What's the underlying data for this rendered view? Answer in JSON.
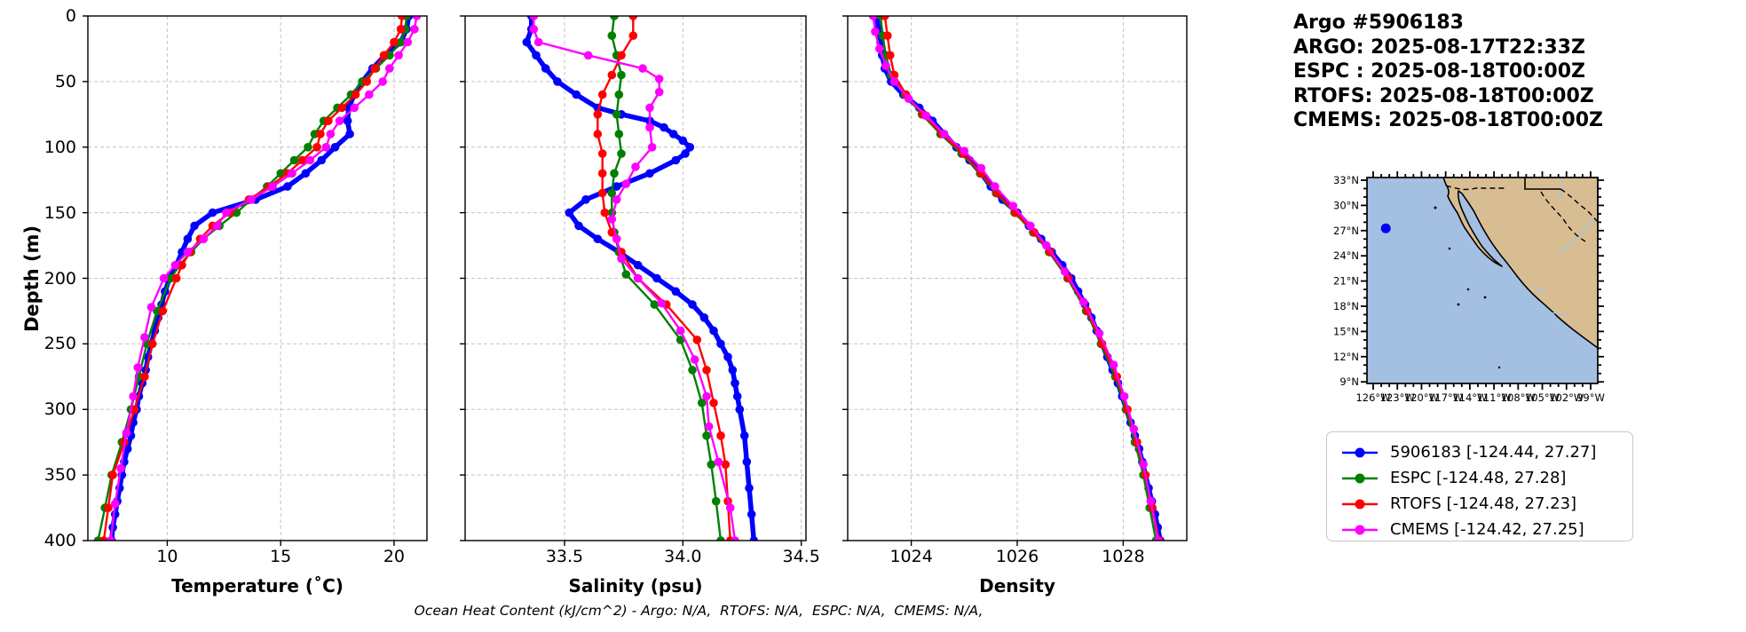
{
  "title_block": {
    "lines": [
      "Argo #5906183",
      "ARGO: 2025-08-17T22:33Z",
      "ESPC : 2025-08-18T00:00Z",
      "RTOFS: 2025-08-18T00:00Z",
      "CMEMS: 2025-08-18T00:00Z"
    ]
  },
  "ylabel": "Depth (m)",
  "footer": "Ocean Heat Content (kJ/cm^2) - Argo: N/A,  RTOFS: N/A,  ESPC: N/A,  CMEMS: N/A,",
  "colors": {
    "argo": "#0000ff",
    "espc": "#008000",
    "rtofs": "#ff0000",
    "cmems": "#ff00ff",
    "grid": "#c4c4c4",
    "ocean": "#a3bfe2",
    "land": "#d9bd92",
    "river": "#9cc4ec"
  },
  "legend": {
    "items": [
      {
        "label": "5906183 [-124.44, 27.27]",
        "color": "#0000ff"
      },
      {
        "label": "ESPC [-124.48, 27.28]",
        "color": "#008000"
      },
      {
        "label": "RTOFS [-124.48, 27.23]",
        "color": "#ff0000"
      },
      {
        "label": "CMEMS [-124.42, 27.25]",
        "color": "#ff00ff"
      }
    ]
  },
  "map": {
    "lat_labels": [
      "33°N",
      "30°N",
      "27°N",
      "24°N",
      "21°N",
      "18°N",
      "15°N",
      "12°N",
      "9°N"
    ],
    "lon_labels": [
      "126°W",
      "123°W",
      "120°W",
      "117°W",
      "114°W",
      "111°W",
      "108°W",
      "105°W",
      "102°W",
      "99°W"
    ],
    "float_lon": -124.44,
    "float_lat": 27.27,
    "marker_color": "#0000ff"
  },
  "chart_data": [
    {
      "type": "line",
      "xlabel": "Temperature (˚C)",
      "ylabel": "Depth (m)",
      "xlim": [
        6.5,
        21.45
      ],
      "ylim": [
        0,
        400
      ],
      "x_ticks": [
        10,
        15,
        20
      ],
      "x_tick_labels": [
        "10",
        "15",
        "20"
      ],
      "y_ticks": [
        0,
        50,
        100,
        150,
        200,
        250,
        300,
        350,
        400
      ],
      "y_tick_labels": [
        "0",
        "50",
        "100",
        "150",
        "200",
        "250",
        "300",
        "350",
        "400"
      ],
      "grid": true,
      "series": [
        {
          "name": "5906183",
          "color": "#0000ff",
          "depth": [
            0,
            10,
            20,
            30,
            40,
            50,
            60,
            70,
            80,
            90,
            100,
            110,
            120,
            130,
            140,
            150,
            160,
            170,
            180,
            190,
            200,
            210,
            220,
            230,
            240,
            250,
            260,
            270,
            280,
            290,
            300,
            310,
            320,
            330,
            340,
            350,
            360,
            370,
            380,
            390,
            400
          ],
          "values": [
            20.65,
            20.55,
            20.3,
            19.6,
            19.05,
            18.6,
            18.25,
            18.0,
            17.95,
            18.05,
            17.4,
            16.8,
            16.1,
            15.3,
            13.9,
            12.0,
            11.2,
            10.9,
            10.65,
            10.4,
            10.1,
            9.9,
            9.75,
            9.6,
            9.45,
            9.3,
            9.15,
            9.05,
            8.9,
            8.75,
            8.65,
            8.5,
            8.4,
            8.25,
            8.1,
            8.0,
            7.9,
            7.8,
            7.7,
            7.6,
            7.55
          ]
        },
        {
          "name": "ESPC",
          "color": "#008000",
          "depth": [
            0,
            10,
            20,
            30,
            40,
            50,
            60,
            70,
            80,
            90,
            100,
            110,
            120,
            130,
            140,
            150,
            160,
            170,
            180,
            190,
            200,
            225,
            250,
            275,
            300,
            325,
            350,
            375,
            400
          ],
          "values": [
            20.55,
            20.5,
            20.3,
            19.8,
            19.2,
            18.6,
            18.1,
            17.5,
            16.9,
            16.5,
            16.2,
            15.6,
            15.0,
            14.4,
            13.7,
            13.05,
            12.3,
            11.6,
            11.05,
            10.55,
            10.15,
            9.55,
            9.1,
            8.75,
            8.4,
            8.0,
            7.55,
            7.25,
            6.95
          ]
        },
        {
          "name": "RTOFS",
          "color": "#ff0000",
          "depth": [
            0,
            10,
            20,
            30,
            40,
            50,
            60,
            70,
            80,
            90,
            100,
            110,
            120,
            130,
            140,
            150,
            160,
            170,
            180,
            190,
            200,
            225,
            250,
            275,
            300,
            325,
            350,
            375,
            400
          ],
          "values": [
            20.35,
            20.3,
            20.0,
            19.55,
            19.15,
            18.8,
            18.3,
            17.7,
            17.1,
            16.75,
            16.6,
            15.95,
            15.3,
            14.5,
            13.6,
            12.75,
            12.0,
            11.45,
            11.0,
            10.65,
            10.4,
            9.8,
            9.35,
            9.0,
            8.55,
            8.1,
            7.6,
            7.4,
            7.2
          ]
        },
        {
          "name": "CMEMS",
          "color": "#ff00ff",
          "depth": [
            0,
            10,
            20,
            30,
            40,
            50,
            60,
            70,
            80,
            90,
            100,
            110,
            120,
            130,
            140,
            150,
            160,
            170,
            180,
            190,
            200,
            222,
            245,
            268,
            290,
            318,
            345,
            372,
            400
          ],
          "values": [
            21.0,
            20.9,
            20.6,
            20.2,
            19.8,
            19.5,
            18.9,
            18.25,
            17.6,
            17.2,
            17.0,
            16.3,
            15.5,
            14.65,
            13.7,
            12.6,
            12.2,
            11.6,
            10.9,
            10.35,
            9.85,
            9.3,
            9.0,
            8.7,
            8.5,
            8.2,
            7.95,
            7.7,
            7.5
          ]
        }
      ]
    },
    {
      "type": "line",
      "xlabel": "Salinity (psu)",
      "ylabel": "Depth (m)",
      "xlim": [
        33.08,
        34.52
      ],
      "ylim": [
        0,
        400
      ],
      "x_ticks": [
        33.5,
        34.0,
        34.5
      ],
      "x_tick_labels": [
        "33.5",
        "34.0",
        "34.5"
      ],
      "y_ticks": [
        0,
        50,
        100,
        150,
        200,
        250,
        300,
        350,
        400
      ],
      "y_tick_labels": [
        "0",
        "50",
        "100",
        "150",
        "200",
        "250",
        "300",
        "350",
        "400"
      ],
      "grid": true,
      "series": [
        {
          "name": "5906183",
          "color": "#0000ff",
          "depth": [
            0,
            10,
            20,
            30,
            40,
            50,
            60,
            70,
            75,
            80,
            85,
            90,
            95,
            100,
            105,
            110,
            120,
            130,
            140,
            150,
            160,
            170,
            180,
            190,
            200,
            210,
            220,
            230,
            240,
            250,
            260,
            270,
            280,
            290,
            300,
            320,
            340,
            360,
            380,
            400
          ],
          "values": [
            33.36,
            33.36,
            33.34,
            33.38,
            33.42,
            33.47,
            33.55,
            33.64,
            33.74,
            33.86,
            33.92,
            33.96,
            34.0,
            34.03,
            34.01,
            33.97,
            33.86,
            33.72,
            33.59,
            33.52,
            33.56,
            33.64,
            33.73,
            33.81,
            33.89,
            33.97,
            34.04,
            34.09,
            34.13,
            34.16,
            34.19,
            34.21,
            34.22,
            34.23,
            34.24,
            34.26,
            34.27,
            34.28,
            34.29,
            34.3
          ]
        },
        {
          "name": "ESPC",
          "color": "#008000",
          "depth": [
            0,
            15,
            30,
            45,
            60,
            75,
            90,
            105,
            120,
            135,
            150,
            165,
            180,
            197,
            220,
            247,
            270,
            295,
            320,
            342,
            370,
            400
          ],
          "values": [
            33.71,
            33.7,
            33.72,
            33.74,
            33.73,
            33.72,
            33.73,
            33.74,
            33.71,
            33.7,
            33.7,
            33.71,
            33.73,
            33.76,
            33.88,
            33.99,
            34.04,
            34.08,
            34.1,
            34.12,
            34.14,
            34.16
          ]
        },
        {
          "name": "RTOFS",
          "color": "#ff0000",
          "depth": [
            0,
            15,
            30,
            45,
            60,
            75,
            90,
            105,
            120,
            135,
            150,
            165,
            180,
            200,
            220,
            247,
            270,
            295,
            320,
            342,
            370,
            400
          ],
          "values": [
            33.79,
            33.79,
            33.74,
            33.7,
            33.66,
            33.64,
            33.64,
            33.66,
            33.66,
            33.66,
            33.67,
            33.7,
            33.74,
            33.81,
            33.93,
            34.06,
            34.1,
            34.13,
            34.16,
            34.18,
            34.19,
            34.2
          ]
        },
        {
          "name": "CMEMS",
          "color": "#ff00ff",
          "depth": [
            0,
            10,
            20,
            30,
            40,
            48,
            58,
            70,
            85,
            100,
            115,
            128,
            140,
            155,
            170,
            185,
            200,
            219,
            240,
            262,
            290,
            313,
            340,
            375,
            400
          ],
          "values": [
            33.37,
            33.37,
            33.39,
            33.6,
            33.83,
            33.9,
            33.9,
            33.86,
            33.86,
            33.87,
            33.8,
            33.76,
            33.72,
            33.7,
            33.72,
            33.74,
            33.81,
            33.91,
            33.99,
            34.05,
            34.1,
            34.11,
            34.15,
            34.2,
            34.22
          ]
        }
      ]
    },
    {
      "type": "line",
      "xlabel": "Density",
      "ylabel": "Depth (m)",
      "xlim": [
        1022.8,
        1029.2
      ],
      "ylim": [
        0,
        400
      ],
      "x_ticks": [
        1024,
        1026,
        1028
      ],
      "x_tick_labels": [
        "1024",
        "1026",
        "1028"
      ],
      "y_ticks": [
        0,
        50,
        100,
        150,
        200,
        250,
        300,
        350,
        400
      ],
      "y_tick_labels": [
        "0",
        "50",
        "100",
        "150",
        "200",
        "250",
        "300",
        "350",
        "400"
      ],
      "grid": true,
      "series": [
        {
          "name": "5906183",
          "color": "#0000ff",
          "depth": [
            0,
            10,
            20,
            30,
            40,
            50,
            60,
            70,
            80,
            90,
            100,
            110,
            120,
            130,
            140,
            150,
            160,
            170,
            180,
            190,
            200,
            210,
            220,
            230,
            240,
            250,
            260,
            270,
            280,
            290,
            300,
            310,
            320,
            330,
            340,
            350,
            360,
            370,
            380,
            390,
            400
          ],
          "values": [
            1023.35,
            1023.38,
            1023.42,
            1023.45,
            1023.5,
            1023.62,
            1023.85,
            1024.15,
            1024.4,
            1024.62,
            1024.85,
            1025.1,
            1025.32,
            1025.5,
            1025.72,
            1026.0,
            1026.22,
            1026.45,
            1026.65,
            1026.85,
            1027.02,
            1027.15,
            1027.28,
            1027.4,
            1027.5,
            1027.6,
            1027.7,
            1027.8,
            1027.9,
            1027.98,
            1028.06,
            1028.14,
            1028.22,
            1028.3,
            1028.36,
            1028.42,
            1028.48,
            1028.54,
            1028.6,
            1028.65,
            1028.7
          ]
        },
        {
          "name": "ESPC",
          "color": "#008000",
          "depth": [
            0,
            15,
            30,
            45,
            60,
            75,
            90,
            105,
            120,
            135,
            150,
            165,
            180,
            200,
            225,
            250,
            275,
            300,
            325,
            350,
            375,
            400
          ],
          "values": [
            1023.42,
            1023.46,
            1023.52,
            1023.62,
            1023.88,
            1024.2,
            1024.55,
            1024.95,
            1025.3,
            1025.6,
            1025.95,
            1026.3,
            1026.6,
            1026.95,
            1027.3,
            1027.58,
            1027.85,
            1028.05,
            1028.22,
            1028.38,
            1028.5,
            1028.62
          ]
        },
        {
          "name": "RTOFS",
          "color": "#ff0000",
          "depth": [
            0,
            15,
            30,
            45,
            60,
            75,
            90,
            105,
            120,
            135,
            150,
            165,
            180,
            200,
            225,
            250,
            275,
            300,
            325,
            350,
            375,
            400
          ],
          "values": [
            1023.5,
            1023.55,
            1023.6,
            1023.68,
            1023.9,
            1024.22,
            1024.58,
            1024.98,
            1025.32,
            1025.62,
            1025.97,
            1026.32,
            1026.62,
            1026.97,
            1027.32,
            1027.6,
            1027.88,
            1028.08,
            1028.26,
            1028.42,
            1028.55,
            1028.68
          ]
        },
        {
          "name": "CMEMS",
          "color": "#ff00ff",
          "depth": [
            0,
            12,
            25,
            38,
            50,
            63,
            76,
            90,
            103,
            116,
            130,
            145,
            160,
            175,
            195,
            218,
            242,
            266,
            290,
            315,
            342,
            370,
            400
          ],
          "values": [
            1023.28,
            1023.32,
            1023.4,
            1023.52,
            1023.68,
            1023.95,
            1024.28,
            1024.62,
            1025.0,
            1025.32,
            1025.58,
            1025.92,
            1026.25,
            1026.55,
            1026.9,
            1027.25,
            1027.55,
            1027.82,
            1028.02,
            1028.2,
            1028.38,
            1028.52,
            1028.66
          ]
        }
      ]
    }
  ]
}
